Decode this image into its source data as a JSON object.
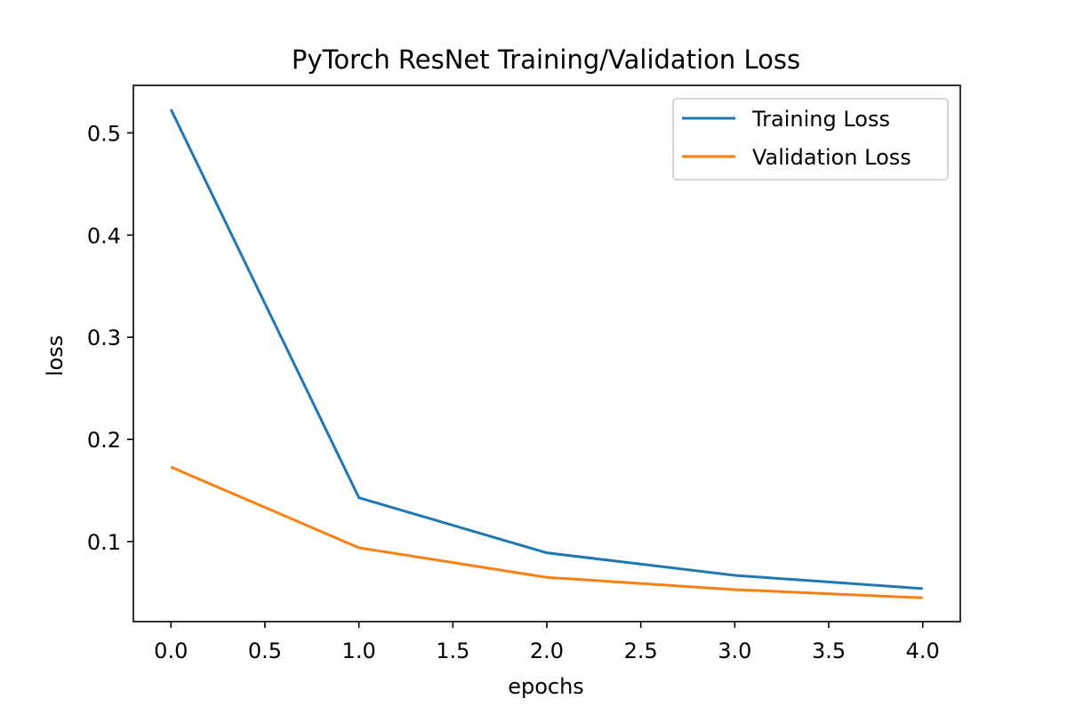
{
  "chart_data": {
    "type": "line",
    "title": "PyTorch ResNet Training/Validation Loss",
    "xlabel": "epochs",
    "ylabel": "loss",
    "x": [
      0,
      1,
      2,
      3,
      4
    ],
    "series": [
      {
        "name": "Training Loss",
        "color": "#1f77b4",
        "values": [
          0.523,
          0.143,
          0.089,
          0.067,
          0.054
        ]
      },
      {
        "name": "Validation Loss",
        "color": "#ff7f0e",
        "values": [
          0.173,
          0.094,
          0.065,
          0.053,
          0.045
        ]
      }
    ],
    "xlim": [
      -0.2,
      4.2
    ],
    "ylim": [
      0.0217,
      0.5465
    ],
    "xticks": [
      0.0,
      0.5,
      1.0,
      1.5,
      2.0,
      2.5,
      3.0,
      3.5,
      4.0
    ],
    "xtick_labels": [
      "0.0",
      "0.5",
      "1.0",
      "1.5",
      "2.0",
      "2.5",
      "3.0",
      "3.5",
      "4.0"
    ],
    "yticks": [
      0.1,
      0.2,
      0.3,
      0.4,
      0.5
    ],
    "ytick_labels": [
      "0.1",
      "0.2",
      "0.3",
      "0.4",
      "0.5"
    ],
    "grid": false,
    "legend_position": "top-right"
  }
}
